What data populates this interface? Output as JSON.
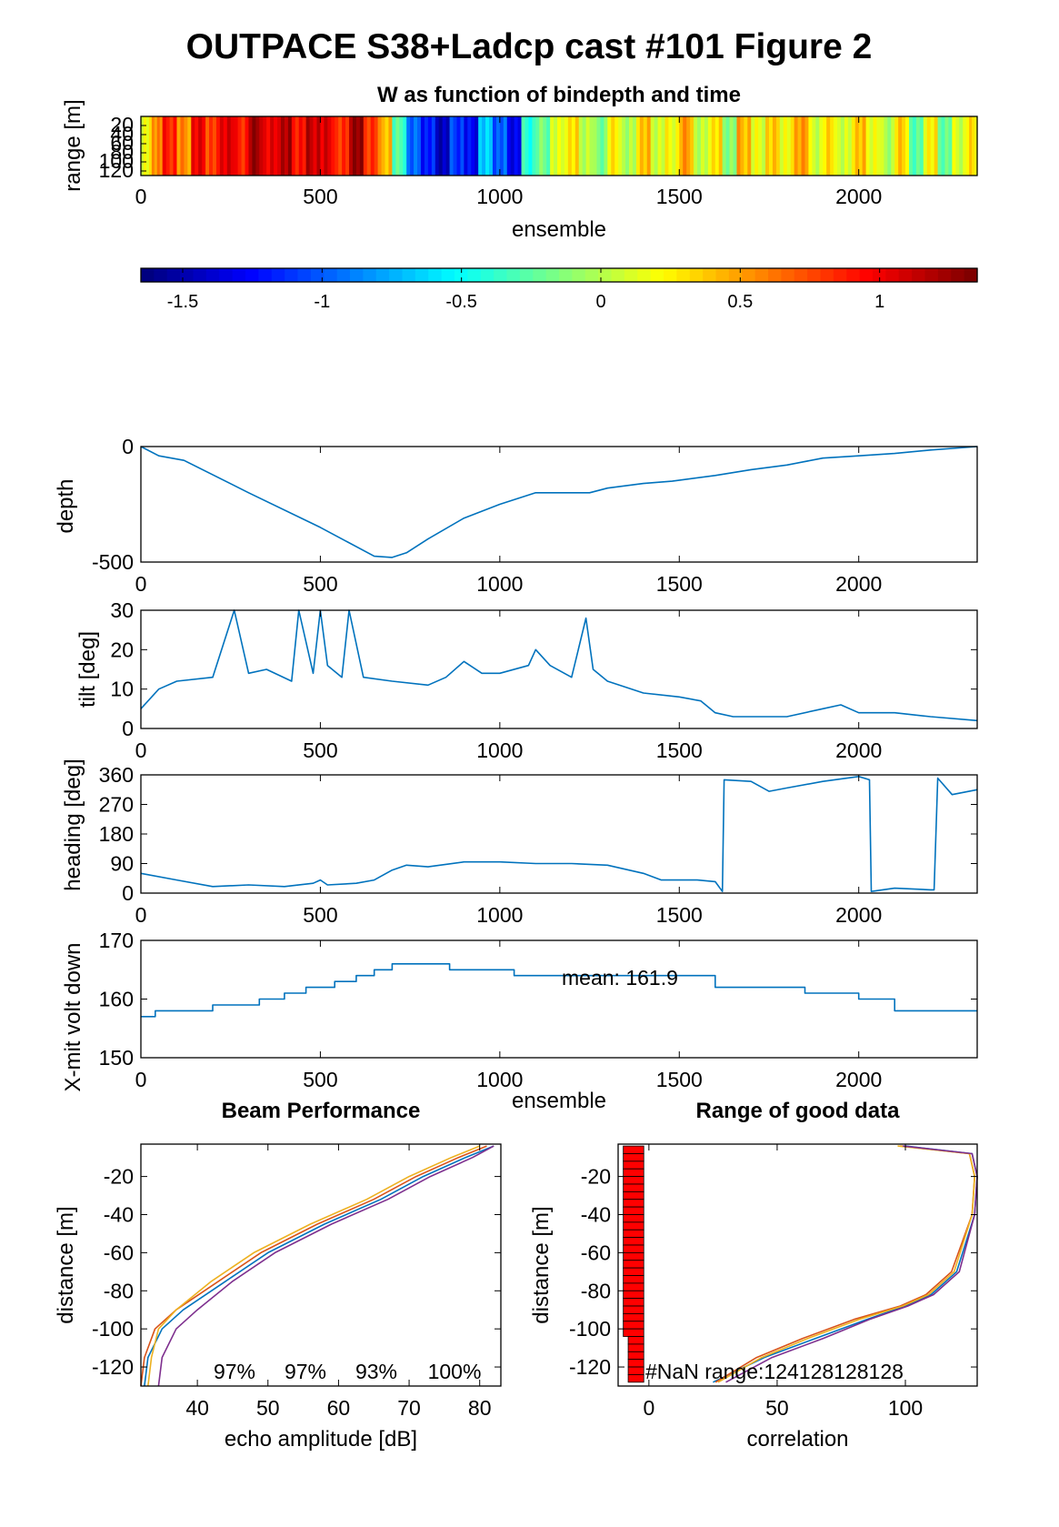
{
  "figure_title": "OUTPACE S38+Ladcp cast #101 Figure 2",
  "chart_data": [
    {
      "id": "w-panel",
      "type": "heatmap",
      "title": "W as function of bindepth and time",
      "xlabel": "ensemble",
      "ylabel": "range [m]",
      "xlim": [
        0,
        2330
      ],
      "ylim": [
        0,
        130
      ],
      "xticks": [
        0,
        500,
        1000,
        1500,
        2000
      ],
      "yticks": [
        20,
        40,
        60,
        80,
        100,
        120
      ],
      "colorbar": {
        "range": [
          -1.65,
          1.35
        ],
        "ticks": [
          -1.5,
          -1,
          -0.5,
          0,
          0.5,
          1
        ]
      },
      "segments": [
        {
          "x": 0,
          "w": 0.2
        },
        {
          "x": 30,
          "w": 0.6
        },
        {
          "x": 60,
          "w": 0.9
        },
        {
          "x": 100,
          "w": 0.55
        },
        {
          "x": 140,
          "w": 1.0
        },
        {
          "x": 180,
          "w": 0.8
        },
        {
          "x": 220,
          "w": 1.1
        },
        {
          "x": 260,
          "w": 0.9
        },
        {
          "x": 300,
          "w": 1.25
        },
        {
          "x": 340,
          "w": 1.0
        },
        {
          "x": 380,
          "w": 1.2
        },
        {
          "x": 420,
          "w": 0.95
        },
        {
          "x": 460,
          "w": 1.15
        },
        {
          "x": 500,
          "w": 1.05
        },
        {
          "x": 540,
          "w": 0.8
        },
        {
          "x": 580,
          "w": 1.3
        },
        {
          "x": 620,
          "w": 0.85
        },
        {
          "x": 660,
          "w": 0.45
        },
        {
          "x": 700,
          "w": -0.3
        },
        {
          "x": 740,
          "w": -1.0
        },
        {
          "x": 780,
          "w": -1.2
        },
        {
          "x": 820,
          "w": -1.45
        },
        {
          "x": 860,
          "w": -1.1
        },
        {
          "x": 900,
          "w": -1.3
        },
        {
          "x": 940,
          "w": -0.7
        },
        {
          "x": 980,
          "w": -1.0
        },
        {
          "x": 1020,
          "w": -1.3
        },
        {
          "x": 1060,
          "w": -0.4
        },
        {
          "x": 1100,
          "w": -0.2
        },
        {
          "x": 1140,
          "w": 0.1
        },
        {
          "x": 1180,
          "w": 0.3
        },
        {
          "x": 1220,
          "w": 0.05
        },
        {
          "x": 1260,
          "w": -0.15
        },
        {
          "x": 1300,
          "w": 0.25
        },
        {
          "x": 1340,
          "w": -0.05
        },
        {
          "x": 1380,
          "w": 0.4
        },
        {
          "x": 1420,
          "w": 0.1
        },
        {
          "x": 1460,
          "w": 0.2
        },
        {
          "x": 1500,
          "w": 0.5
        },
        {
          "x": 1540,
          "w": 0.0
        },
        {
          "x": 1580,
          "w": 0.3
        },
        {
          "x": 1620,
          "w": -0.1
        },
        {
          "x": 1660,
          "w": 0.45
        },
        {
          "x": 1700,
          "w": 0.15
        },
        {
          "x": 1740,
          "w": 0.35
        },
        {
          "x": 1780,
          "w": 0.2
        },
        {
          "x": 1820,
          "w": 0.55
        },
        {
          "x": 1860,
          "w": 0.1
        },
        {
          "x": 1900,
          "w": 0.3
        },
        {
          "x": 1940,
          "w": 0.05
        },
        {
          "x": 1980,
          "w": 0.4
        },
        {
          "x": 2020,
          "w": 0.2
        },
        {
          "x": 2060,
          "w": 0.0
        },
        {
          "x": 2100,
          "w": 0.35
        },
        {
          "x": 2140,
          "w": -0.3
        },
        {
          "x": 2180,
          "w": 0.25
        },
        {
          "x": 2220,
          "w": -0.2
        },
        {
          "x": 2260,
          "w": 0.1
        },
        {
          "x": 2300,
          "w": 0.3
        }
      ]
    },
    {
      "id": "depth-panel",
      "type": "line",
      "ylabel": "depth",
      "xlim": [
        0,
        2330
      ],
      "ylim": [
        -500,
        0
      ],
      "xticks": [
        0,
        500,
        1000,
        1500,
        2000
      ],
      "yticks": [
        -500,
        0
      ],
      "series": [
        {
          "x": [
            0,
            50,
            120,
            300,
            500,
            650,
            700,
            740,
            800,
            900,
            1000,
            1100,
            1250,
            1300,
            1400,
            1480,
            1600,
            1700,
            1800,
            1900,
            2000,
            2100,
            2200,
            2330
          ],
          "y": [
            0,
            -40,
            -60,
            -200,
            -350,
            -475,
            -480,
            -460,
            -400,
            -310,
            -250,
            -200,
            -200,
            -180,
            -160,
            -150,
            -125,
            -100,
            -80,
            -50,
            -40,
            -30,
            -15,
            0
          ]
        }
      ]
    },
    {
      "id": "tilt-panel",
      "type": "line",
      "ylabel": "tilt [deg]",
      "xlim": [
        0,
        2330
      ],
      "ylim": [
        0,
        30
      ],
      "xticks": [
        0,
        500,
        1000,
        1500,
        2000
      ],
      "yticks": [
        0,
        10,
        20,
        30
      ],
      "series": [
        {
          "x": [
            0,
            50,
            100,
            200,
            260,
            300,
            350,
            420,
            440,
            480,
            500,
            520,
            560,
            580,
            620,
            700,
            800,
            850,
            900,
            950,
            1000,
            1080,
            1100,
            1140,
            1200,
            1240,
            1260,
            1300,
            1400,
            1500,
            1560,
            1600,
            1650,
            1800,
            1900,
            1950,
            2000,
            2100,
            2200,
            2330
          ],
          "y": [
            5,
            10,
            12,
            13,
            30,
            14,
            15,
            12,
            30,
            14,
            30,
            16,
            13,
            30,
            13,
            12,
            11,
            13,
            17,
            14,
            14,
            16,
            20,
            16,
            13,
            28,
            15,
            12,
            9,
            8,
            7,
            4,
            3,
            3,
            5,
            6,
            4,
            4,
            3,
            2
          ]
        }
      ]
    },
    {
      "id": "heading-panel",
      "type": "line",
      "ylabel": "heading [deg]",
      "xlim": [
        0,
        2330
      ],
      "ylim": [
        0,
        360
      ],
      "xticks": [
        0,
        500,
        1000,
        1500,
        2000
      ],
      "yticks": [
        0,
        90,
        180,
        270,
        360
      ],
      "series": [
        {
          "x": [
            0,
            100,
            200,
            300,
            400,
            480,
            500,
            520,
            600,
            650,
            700,
            740,
            800,
            900,
            1000,
            1100,
            1200,
            1300,
            1400,
            1450,
            1550,
            1600,
            1620,
            1625,
            1700,
            1750,
            1800,
            1900,
            2000,
            2030,
            2035,
            2100,
            2200,
            2210,
            2220,
            2260,
            2330
          ],
          "y": [
            60,
            40,
            20,
            25,
            20,
            30,
            40,
            25,
            30,
            40,
            70,
            85,
            80,
            95,
            95,
            90,
            90,
            85,
            60,
            40,
            40,
            35,
            5,
            345,
            340,
            310,
            320,
            340,
            355,
            345,
            5,
            15,
            10,
            10,
            350,
            300,
            315
          ]
        }
      ]
    },
    {
      "id": "volt-panel",
      "type": "line",
      "ylabel": "X-mit volt down",
      "xlabel": "ensemble",
      "xlim": [
        0,
        2330
      ],
      "ylim": [
        150,
        170
      ],
      "xticks": [
        0,
        500,
        1000,
        1500,
        2000
      ],
      "yticks": [
        150,
        160,
        170
      ],
      "annotation": "mean: 161.9",
      "series": [
        {
          "x": [
            0,
            40,
            40,
            200,
            200,
            330,
            330,
            400,
            400,
            460,
            460,
            540,
            540,
            600,
            600,
            650,
            650,
            700,
            700,
            860,
            860,
            1040,
            1040,
            1600,
            1600,
            1850,
            1850,
            2000,
            2000,
            2100,
            2100,
            2330
          ],
          "y": [
            157,
            157,
            158,
            158,
            159,
            159,
            160,
            160,
            161,
            161,
            162,
            162,
            163,
            163,
            164,
            164,
            165,
            165,
            166,
            166,
            165,
            165,
            164,
            164,
            162,
            162,
            161,
            161,
            160,
            160,
            158,
            158
          ]
        }
      ]
    },
    {
      "id": "beam-panel",
      "type": "line",
      "title": "Beam Performance",
      "xlabel": "echo amplitude [dB]",
      "ylabel": "distance [m]",
      "xlim": [
        32,
        83
      ],
      "ylim": [
        -130,
        -3
      ],
      "xticks": [
        40,
        50,
        60,
        70,
        80
      ],
      "yticks": [
        -120,
        -100,
        -80,
        -60,
        -40,
        -20
      ],
      "annotations": [
        "97%",
        "97%",
        "93%",
        "100%"
      ],
      "series": [
        {
          "color": "#0072BD",
          "x": [
            82,
            78,
            72,
            66,
            58,
            50,
            44,
            38,
            35,
            33,
            32.5
          ],
          "y": [
            -4,
            -10,
            -20,
            -32,
            -45,
            -60,
            -75,
            -90,
            -100,
            -115,
            -130
          ]
        },
        {
          "color": "#D95319",
          "x": [
            81,
            77,
            71,
            65,
            57,
            49,
            43,
            37,
            34,
            32.5,
            32
          ],
          "y": [
            -4,
            -10,
            -20,
            -32,
            -45,
            -60,
            -75,
            -90,
            -100,
            -115,
            -130
          ]
        },
        {
          "color": "#EDB120",
          "x": [
            80,
            76,
            70,
            64,
            56,
            48,
            42,
            37,
            34.5,
            33.5,
            33
          ],
          "y": [
            -4,
            -10,
            -20,
            -32,
            -45,
            -60,
            -75,
            -90,
            -100,
            -115,
            -130
          ]
        },
        {
          "color": "#7E2F8E",
          "x": [
            82,
            79,
            73,
            67,
            59,
            51,
            45,
            40,
            37,
            35,
            34.5
          ],
          "y": [
            -4,
            -10,
            -20,
            -32,
            -45,
            -60,
            -75,
            -90,
            -100,
            -115,
            -130
          ]
        }
      ]
    },
    {
      "id": "range-panel",
      "type": "line",
      "title": "Range of good data",
      "xlabel": "correlation",
      "ylabel": "distance [m]",
      "xlim": [
        -12,
        128
      ],
      "ylim": [
        -130,
        -3
      ],
      "xticks": [
        0,
        50,
        100
      ],
      "yticks": [
        -120,
        -100,
        -80,
        -60,
        -40,
        -20
      ],
      "annotation": "#NaN range:124128128128",
      "nan_bars": {
        "y": [
          -4,
          -124
        ],
        "x": [
          -10,
          -2
        ]
      },
      "series": [
        {
          "color": "#0072BD",
          "x": [
            100,
            126,
            128,
            127,
            120,
            110,
            100,
            85,
            65,
            45,
            25
          ],
          "y": [
            -4,
            -8,
            -20,
            -40,
            -70,
            -82,
            -88,
            -95,
            -105,
            -115,
            -128
          ]
        },
        {
          "color": "#D95319",
          "x": [
            98,
            125,
            127,
            126,
            118,
            108,
            98,
            80,
            60,
            42,
            26
          ],
          "y": [
            -4,
            -8,
            -20,
            -40,
            -70,
            -82,
            -88,
            -95,
            -105,
            -115,
            -128
          ]
        },
        {
          "color": "#EDB120",
          "x": [
            97,
            125,
            127,
            126,
            119,
            109,
            99,
            82,
            62,
            44,
            27
          ],
          "y": [
            -4,
            -8,
            -20,
            -40,
            -70,
            -82,
            -88,
            -95,
            -105,
            -115,
            -128
          ]
        },
        {
          "color": "#7E2F8E",
          "x": [
            99,
            126,
            128,
            127,
            121,
            111,
            101,
            86,
            68,
            48,
            30
          ],
          "y": [
            -4,
            -8,
            -20,
            -40,
            -70,
            -82,
            -88,
            -95,
            -105,
            -115,
            -128
          ]
        }
      ]
    }
  ]
}
